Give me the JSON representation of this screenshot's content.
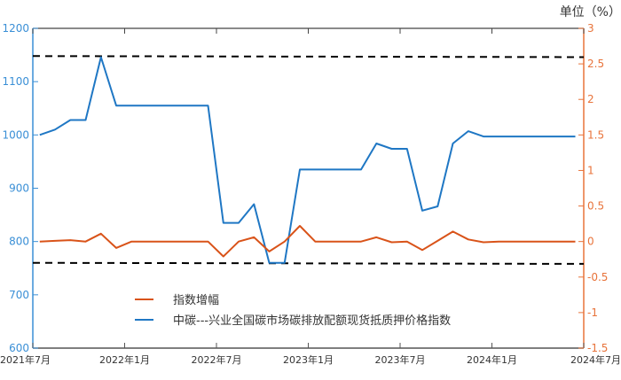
{
  "chart_data": {
    "type": "line",
    "unit_label": "单位（%）",
    "x_tick_labels": [
      "2021年7月",
      "2022年1月",
      "2022年7月",
      "2023年1月",
      "2023年7月",
      "2024年1月",
      "2024年7月"
    ],
    "x_start": "2021-07",
    "x_months": 36,
    "left_axis": {
      "ylim": [
        600,
        1200
      ],
      "ticks": [
        600,
        700,
        800,
        900,
        1000,
        1100,
        1200
      ],
      "color": "#3A8FD6"
    },
    "right_axis": {
      "ylim": [
        -1.5,
        3
      ],
      "ticks": [
        -1.5,
        -1,
        -0.5,
        0,
        0.5,
        1,
        1.5,
        2,
        2.5,
        3
      ],
      "color": "#E8733A"
    },
    "series": [
      {
        "name": "中碳---兴业全国碳市场碳排放配额现货抵质押价格指数",
        "axis": "left",
        "color": "#1F77C4",
        "values": [
          1000,
          1010,
          1028,
          1028,
          1146,
          1055,
          1055,
          1055,
          1055,
          1055,
          1055,
          1055,
          835,
          835,
          870,
          760,
          760,
          935,
          935,
          935,
          935,
          935,
          984,
          974,
          974,
          858,
          866,
          984,
          1007,
          997,
          997,
          997,
          997,
          997,
          997,
          997
        ]
      },
      {
        "name": "指数增幅",
        "axis": "right",
        "color": "#D95319",
        "values": [
          0,
          0.01,
          0.02,
          0,
          0.11,
          -0.09,
          0,
          0,
          0,
          0,
          0,
          0,
          -0.21,
          0,
          0.06,
          -0.14,
          0,
          0.22,
          0,
          0,
          0,
          0,
          0.06,
          -0.01,
          0,
          -0.12,
          0.01,
          0.14,
          0.03,
          -0.01,
          0,
          0,
          0,
          0,
          0,
          0
        ]
      }
    ],
    "reference_lines": [
      {
        "axis": "left",
        "from": 1148,
        "to": 1146,
        "style": "dashed",
        "color": "#000000"
      },
      {
        "axis": "left",
        "from": 760,
        "to": 758,
        "style": "dashed",
        "color": "#000000"
      }
    ],
    "legend": {
      "position": "bottom-center",
      "entries": [
        "指数增幅",
        "中碳---兴业全国碳市场碳排放配额现货抵质押价格指数"
      ]
    }
  }
}
